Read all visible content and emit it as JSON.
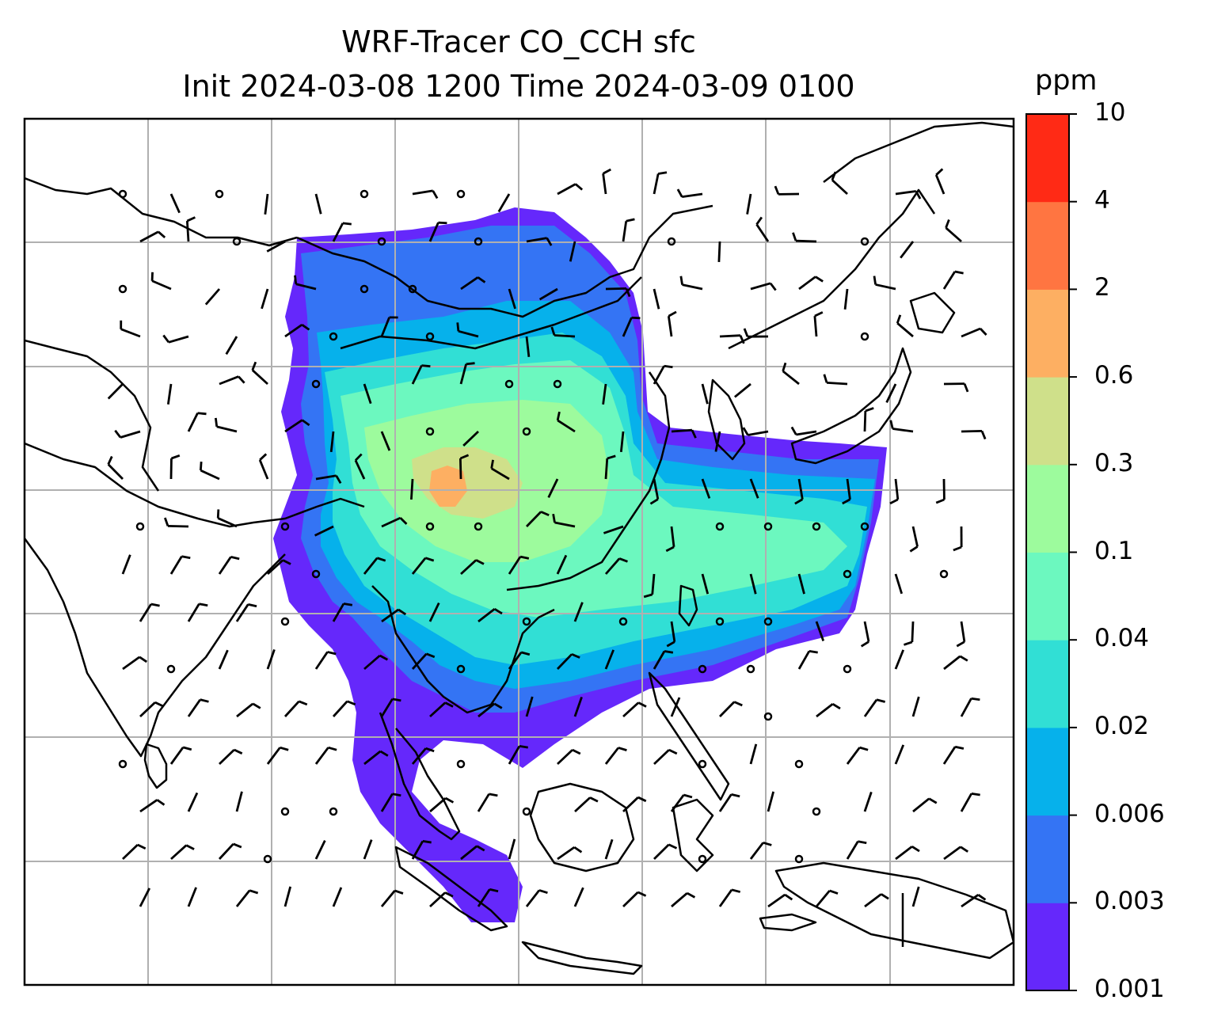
{
  "title": {
    "line1": "WRF-Tracer CO_CCH sfc",
    "line2": "Init 2024-03-08 1200 Time 2024-03-09 0100"
  },
  "colorbar": {
    "unit": "ppm",
    "tick_labels": [
      "0.001",
      "0.003",
      "0.006",
      "0.02",
      "0.04",
      "0.1",
      "0.3",
      "0.6",
      "2",
      "4",
      "10"
    ],
    "colors": [
      "#6528fb",
      "#3474f4",
      "#06b1eb",
      "#31dfd5",
      "#6cf8bf",
      "#9dfb9d",
      "#cfe08a",
      "#fdaf62",
      "#ff7541",
      "#ff2a15"
    ]
  },
  "map": {
    "field": "CO_CCH",
    "level": "sfc",
    "gridlines": true,
    "overlay": "wind barbs",
    "coastlines": true
  }
}
